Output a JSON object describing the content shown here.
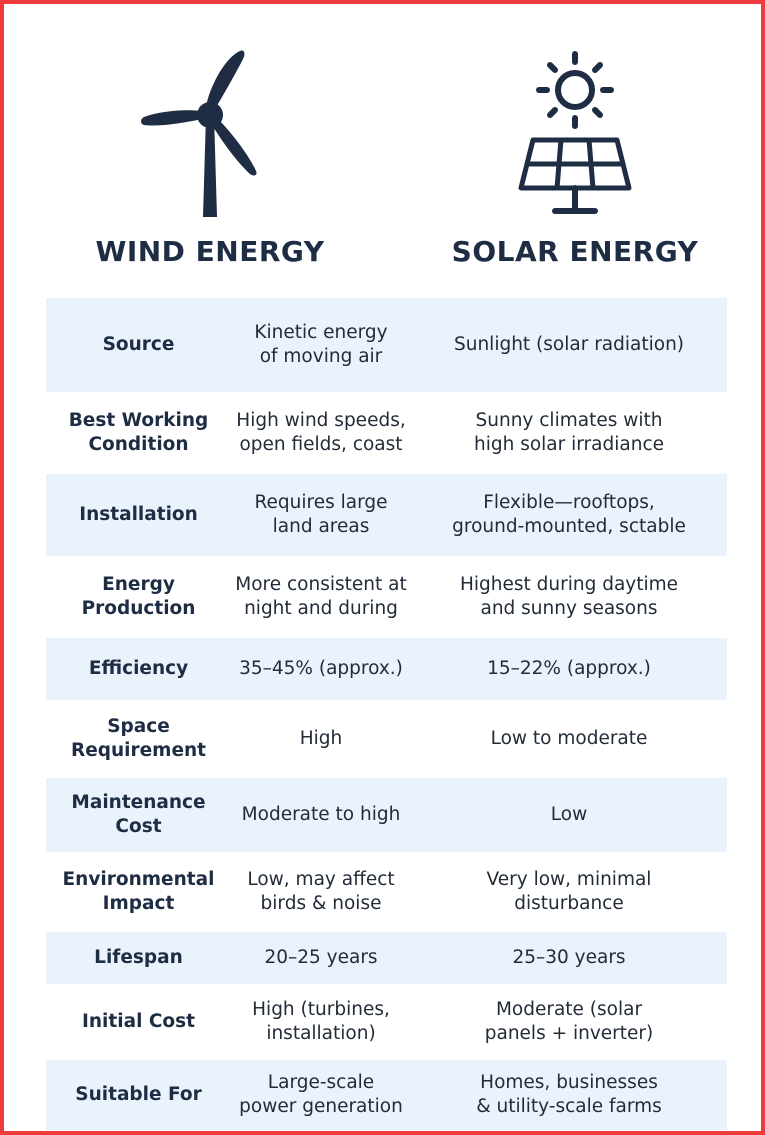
{
  "columns": {
    "wind": {
      "title": "WIND ENERGY",
      "icon": "wind-turbine-icon"
    },
    "solar": {
      "title": "SOLAR ENERGY",
      "icon": "solar-panel-icon"
    }
  },
  "colors": {
    "frame": "#ef3b3b",
    "icon": "#1e2d44",
    "row_shade": "#eaf3fc"
  },
  "rows": [
    {
      "criterion": "Source",
      "wind": "Kinetic energy\nof moving air",
      "solar": "Sunlight (solar radiation)"
    },
    {
      "criterion": "Best Working\nCondition",
      "wind": "High wind speeds,\nopen fields, coast",
      "solar": "Sunny climates with\nhigh solar irradiance"
    },
    {
      "criterion": "Installation",
      "wind": "Requires large\nland areas",
      "solar": "Flexible—rooftops,\nground-mounted, sctable"
    },
    {
      "criterion": "Energy\nProduction",
      "wind": "More consistent at\nnight and during",
      "solar": "Highest during daytime\nand sunny seasons"
    },
    {
      "criterion": "Efficiency",
      "wind": "35–45% (approx.)",
      "solar": "15–22% (approx.)"
    },
    {
      "criterion": "Space\nRequirement",
      "wind": "High",
      "solar": "Low to moderate"
    },
    {
      "criterion": "Maintenance\nCost",
      "wind": "Moderate to high",
      "solar": "Low"
    },
    {
      "criterion": "Environmental\nImpact",
      "wind": "Low, may affect\nbirds & noise",
      "solar": "Very low, minimal\ndisturbance"
    },
    {
      "criterion": "Lifespan",
      "wind": "20–25 years",
      "solar": "25–30 years"
    },
    {
      "criterion": "Initial Cost",
      "wind": "High (turbines,\ninstallation)",
      "solar": "Moderate (solar\npanels + inverter)"
    },
    {
      "criterion": "Suitable For",
      "wind": "Large-scale\npower generation",
      "solar": "Homes, businesses\n& utility-scale farms"
    }
  ]
}
